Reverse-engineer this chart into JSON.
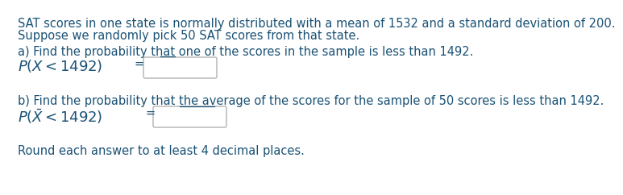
{
  "bg_color": "#ffffff",
  "text_color": "#1a5276",
  "font_size": 10.5,
  "font_size_math": 13.0,
  "line1": "SAT scores in one state is normally distributed with a mean of 1532 and a standard deviation of 200.",
  "line2": "Suppose we randomly pick 50 SAT scores from that state.",
  "part_a_text": "a) Find the probability that one of the scores in the sample is less than 1492.",
  "part_a_underline_start": "a) Find the probability that ",
  "part_a_underline_word": "one",
  "part_b_text": "b) Find the probability that the average of the scores for the sample of 50 scores is less than 1492.",
  "part_b_underline_start": "b) Find the probability that the ",
  "part_b_underline_word": "average",
  "footer": "Round each answer to at least 4 decimal places.",
  "box_facecolor": "#ffffff",
  "box_edgecolor": "#aaaaaa"
}
